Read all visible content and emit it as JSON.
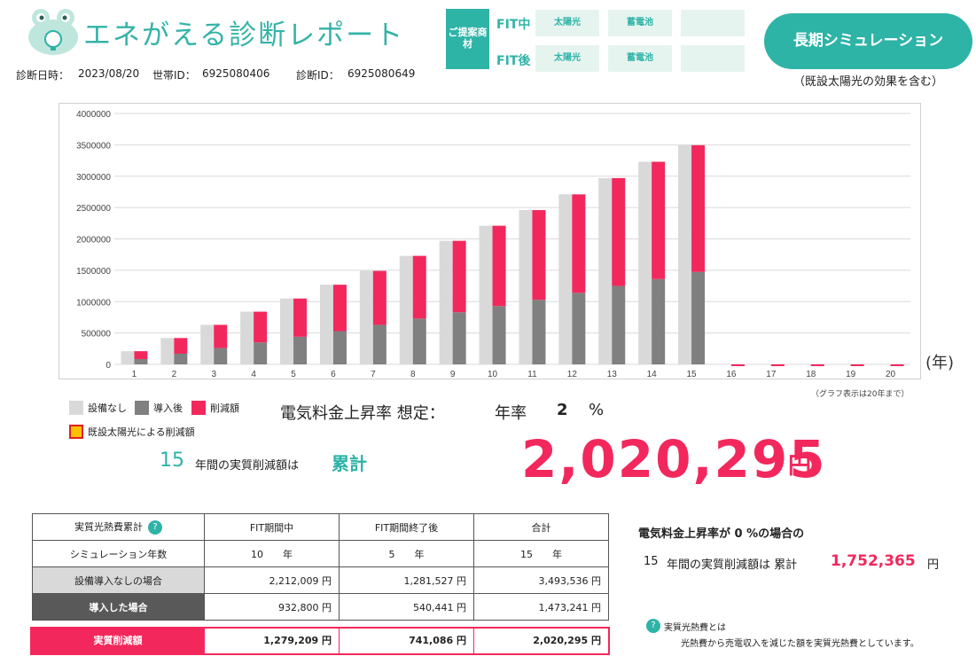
{
  "header": {
    "logo_title": "エネがえる診断レポート",
    "diag_date_label": "診断日時：",
    "diag_date": "2023/08/20",
    "household_label": "世帯ID：",
    "household_id": "6925080406",
    "diag_id_label": "診断ID：",
    "diag_id": "6925080649"
  },
  "proposal": {
    "tag": "ご提案商材",
    "rows": [
      {
        "label": "FIT中",
        "items": [
          "太陽光",
          "蓄電池",
          ""
        ]
      },
      {
        "label": "FIT後",
        "items": [
          "太陽光",
          "蓄電池",
          ""
        ]
      }
    ]
  },
  "long_sim": {
    "button": "長期シミュレーション",
    "note": "（既設太陽光の効果を含む）"
  },
  "chart_data": {
    "type": "bar",
    "categories": [
      "1",
      "2",
      "3",
      "4",
      "5",
      "6",
      "7",
      "8",
      "9",
      "10",
      "11",
      "12",
      "13",
      "14",
      "15",
      "16",
      "17",
      "18",
      "19",
      "20"
    ],
    "series": [
      {
        "name": "設備なし",
        "color": "#d9d9d9",
        "values": [
          210000,
          420000,
          630000,
          840000,
          1050000,
          1270000,
          1490000,
          1730000,
          1970000,
          2210000,
          2460000,
          2710000,
          2970000,
          3230000,
          3494000,
          0,
          0,
          0,
          0,
          0
        ]
      },
      {
        "name": "導入後",
        "color": "#808080",
        "values": [
          85000,
          170000,
          260000,
          350000,
          440000,
          530000,
          630000,
          730000,
          830000,
          930000,
          1030000,
          1140000,
          1250000,
          1360000,
          1473000,
          0,
          0,
          0,
          0,
          0
        ]
      },
      {
        "name": "削減額",
        "color": "#f2285d",
        "values": [
          125000,
          250000,
          370000,
          490000,
          610000,
          740000,
          860000,
          1000000,
          1140000,
          1280000,
          1430000,
          1570000,
          1720000,
          1870000,
          2021000,
          0,
          0,
          0,
          0,
          0
        ]
      }
    ],
    "ylim": [
      0,
      4000000
    ],
    "yticks": [
      "0",
      "500000",
      "1000000",
      "1500000",
      "2000000",
      "2500000",
      "3000000",
      "3500000",
      "4000000"
    ],
    "grid": true,
    "xunit": "(年)",
    "note": "（グラフ表示は20年まで）"
  },
  "legend": {
    "items": [
      {
        "label": "設備なし",
        "color": "#d9d9d9"
      },
      {
        "label": "導入後",
        "color": "#808080"
      },
      {
        "label": "削減額",
        "color": "#f2285d"
      }
    ],
    "existing_label": "既設太陽光による削減額",
    "existing_color": "#ffc000"
  },
  "rate": {
    "label": "電気料金上昇率 想定：",
    "prefix": "年率",
    "value": "2",
    "unit": "%"
  },
  "summary": {
    "years": "15",
    "years_text": "年間の実質削減額は",
    "cumulative_label": "累計",
    "amount": "2,020,295",
    "yen": "円"
  },
  "table": {
    "header": [
      "実質光熱費累計",
      "FIT期間中",
      "FIT期間終了後",
      "合計"
    ],
    "help": "?",
    "sim_years": {
      "label": "シミュレーション年数",
      "fit": "10　　年",
      "after": "5　　年",
      "total": "15　　年"
    },
    "none": {
      "label": "設備導入なしの場合",
      "fit": "2,212,009 円",
      "after": "1,281,527 円",
      "total": "3,493,536 円"
    },
    "after_install": {
      "label": "導入した場合",
      "fit": "932,800 円",
      "after": "540,441 円",
      "total": "1,473,241 円"
    },
    "reduction": {
      "label": "実質削減額",
      "fit": "1,279,209 円",
      "after": "741,086 円",
      "total": "2,020,295 円"
    }
  },
  "zero_case": {
    "title": "電気料金上昇率が 0 %の場合の",
    "years": "15",
    "text": "年間の実質削減額は 累計",
    "amount": "1,752,365",
    "yen": "円"
  },
  "definition": {
    "help": "?",
    "title": "実質光熱費とは",
    "text": "光熱費から売電収入を減じた額を実質光熱費としています。"
  }
}
